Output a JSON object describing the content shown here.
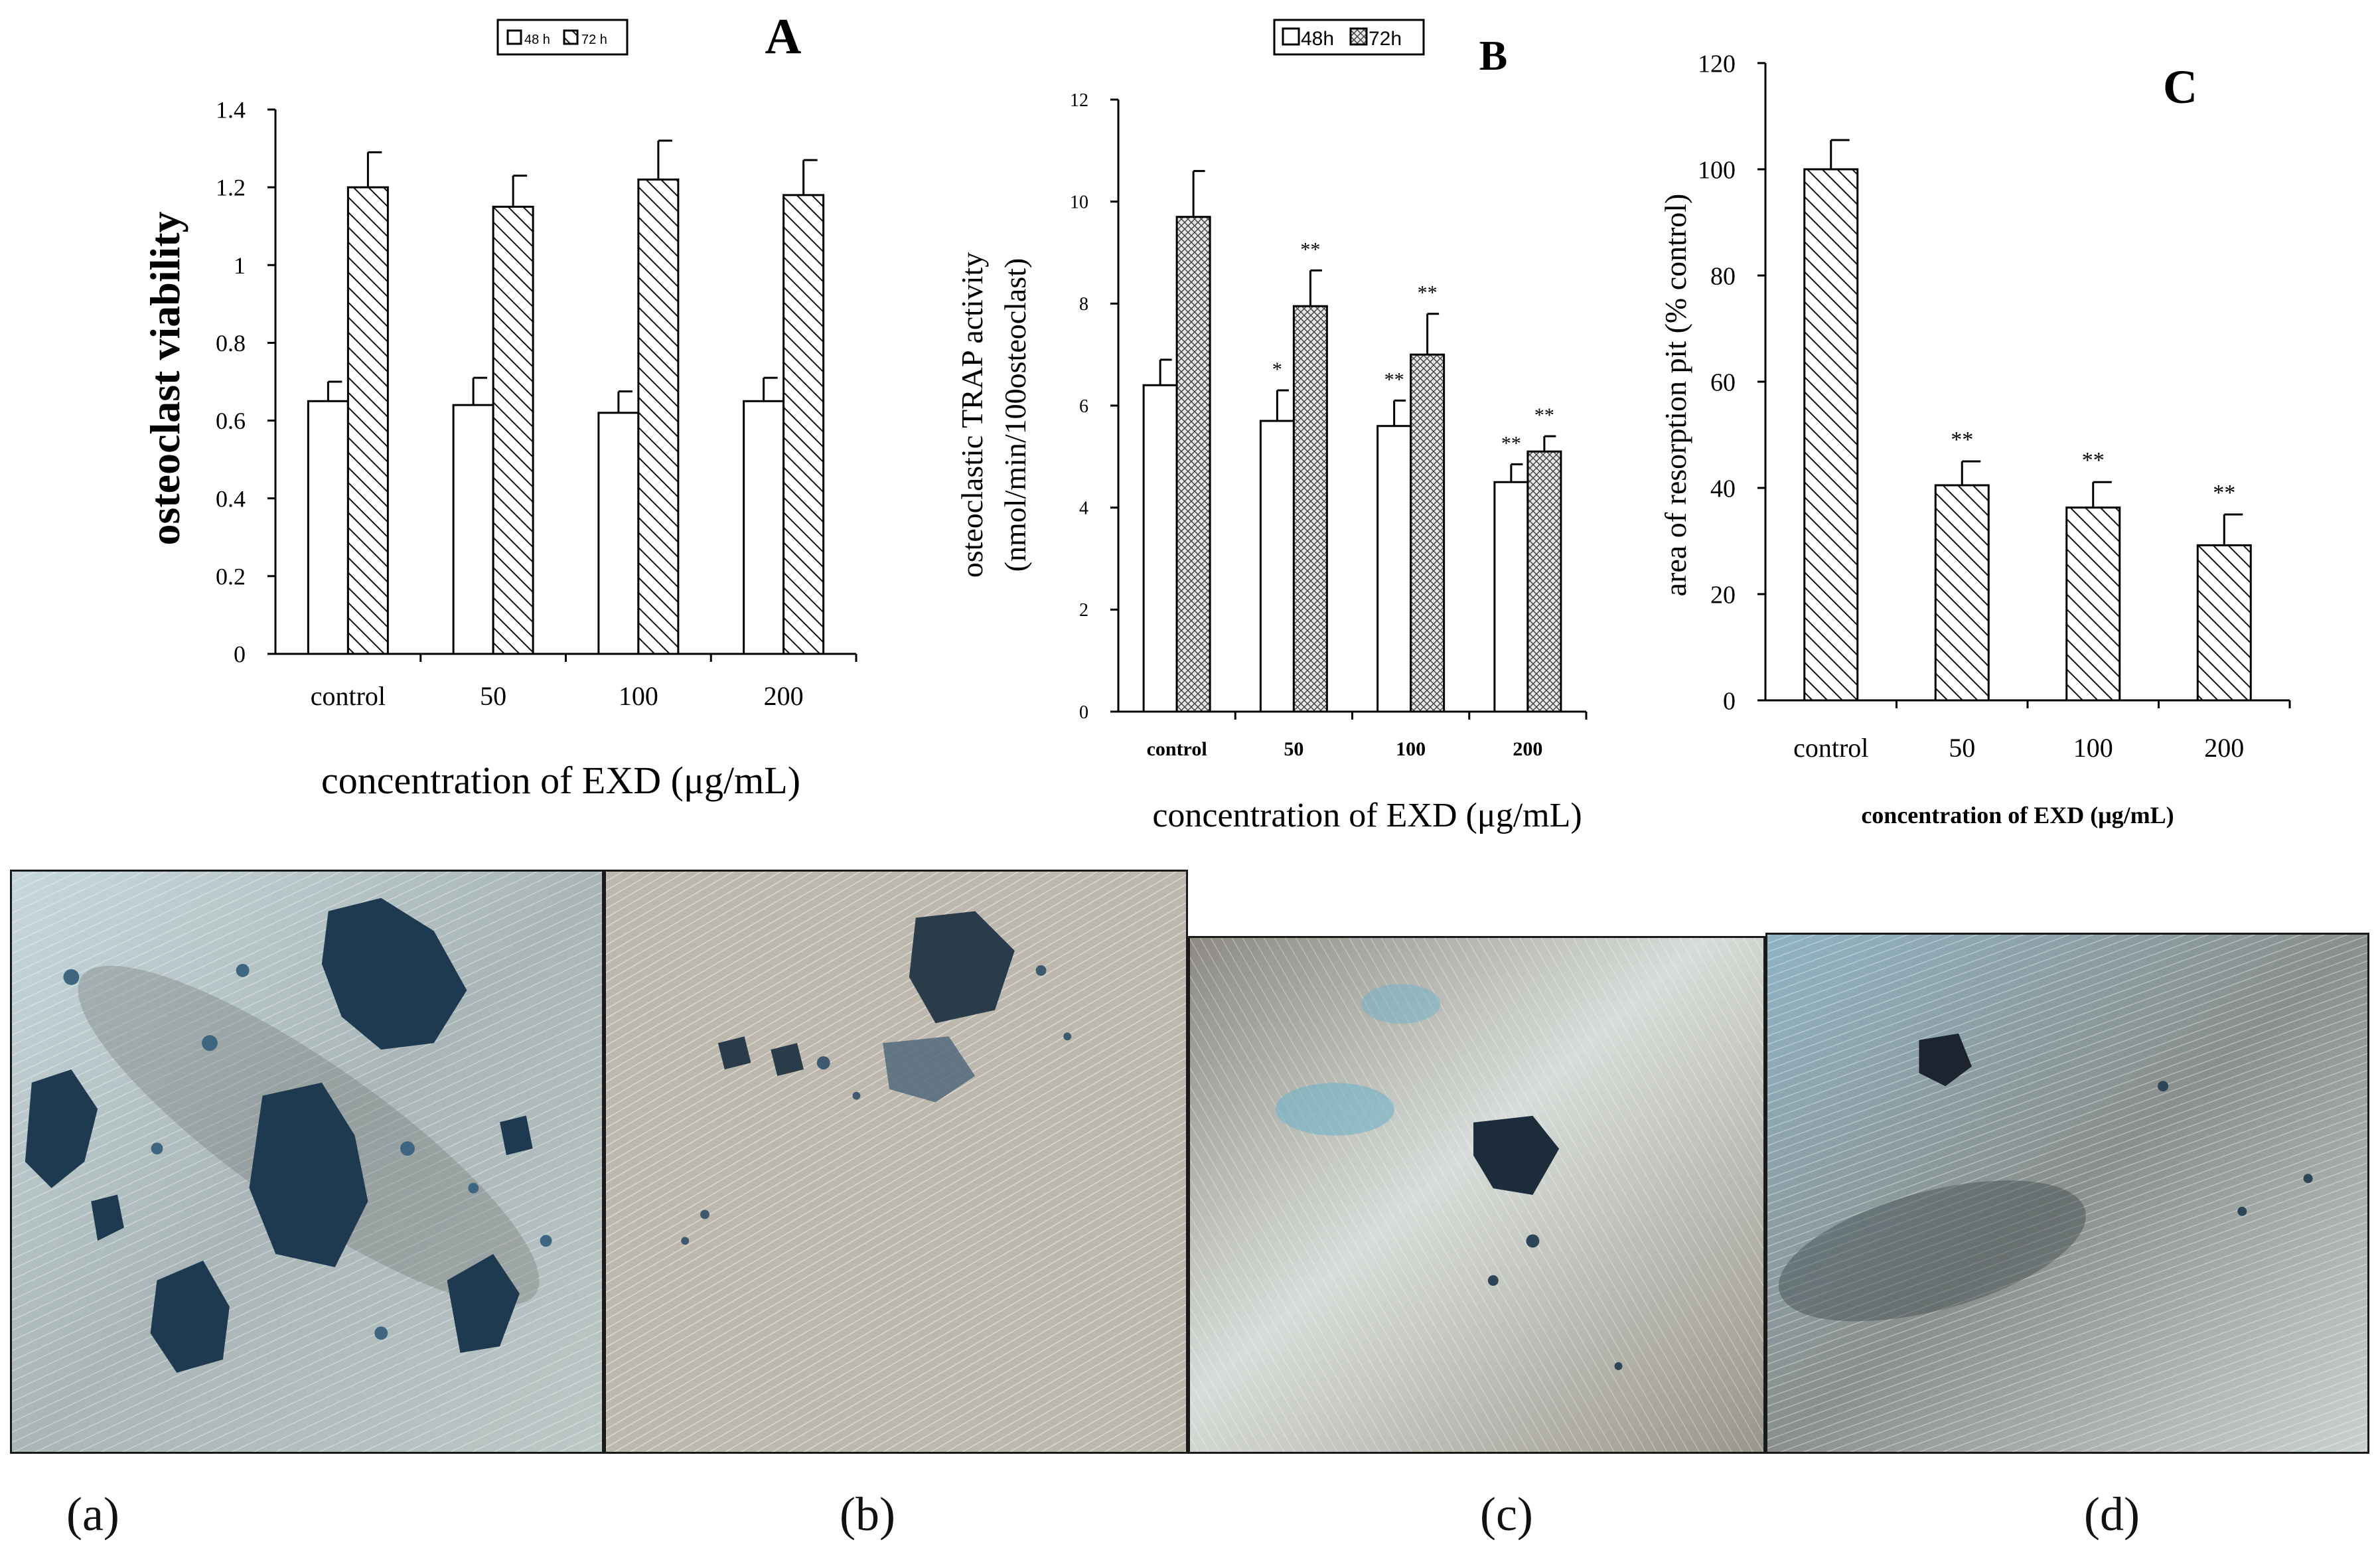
{
  "chart_data": [
    {
      "type": "bar",
      "title": "A",
      "categories": [
        "control",
        "50",
        "100",
        "200"
      ],
      "series": [
        {
          "name": "48 h",
          "values": [
            0.65,
            0.64,
            0.62,
            0.65
          ],
          "errors": [
            0.05,
            0.07,
            0.055,
            0.06
          ],
          "pattern": "white"
        },
        {
          "name": "72 h",
          "values": [
            1.2,
            1.15,
            1.22,
            1.18
          ],
          "errors": [
            0.09,
            0.08,
            0.1,
            0.09
          ],
          "pattern": "hatch"
        }
      ],
      "ylabel": "osteoclast viability",
      "xlabel": "concentration of EXD (μg/mL)",
      "ylim": [
        0,
        1.4
      ],
      "yticks": [
        "0",
        "0.2",
        "0.4",
        "0.6",
        "0.8",
        "1",
        "1.2",
        "1.4"
      ],
      "legend": "top"
    },
    {
      "type": "bar",
      "title": "B",
      "categories": [
        "control",
        "50",
        "100",
        "200"
      ],
      "series": [
        {
          "name": "48h",
          "values": [
            6.4,
            5.7,
            5.6,
            4.5
          ],
          "errors": [
            0.5,
            0.6,
            0.5,
            0.35
          ],
          "marks": [
            "",
            "*",
            "**",
            "**"
          ],
          "pattern": "white"
        },
        {
          "name": "72h",
          "values": [
            9.7,
            7.95,
            7.0,
            5.1
          ],
          "errors": [
            0.9,
            0.7,
            0.8,
            0.3
          ],
          "marks": [
            "",
            "**",
            "**",
            "**"
          ],
          "pattern": "dots"
        }
      ],
      "ylabel_lines": [
        "osteoclastic TRAP activity",
        "(nmol/min/100osteoclast)"
      ],
      "xlabel": "concentration of EXD (μg/mL)",
      "ylim": [
        0,
        12
      ],
      "yticks": [
        "0",
        "2",
        "4",
        "6",
        "8",
        "10",
        "12"
      ],
      "legend": "top"
    },
    {
      "type": "bar",
      "title": "C",
      "categories": [
        "control",
        "50",
        "100",
        "200"
      ],
      "series": [
        {
          "name": "",
          "values": [
            100,
            40.5,
            36.3,
            29.2
          ],
          "errors": [
            5.5,
            4.5,
            4.8,
            5.8
          ],
          "marks": [
            "",
            "**",
            "**",
            "**"
          ],
          "pattern": "hatch"
        }
      ],
      "ylabel": "area of resorption pit (% control)",
      "xlabel": "concentration of EXD (μg/mL)",
      "ylim": [
        0,
        120
      ],
      "yticks": [
        "0",
        "20",
        "40",
        "60",
        "80",
        "100",
        "120"
      ],
      "legend": "none"
    }
  ],
  "legendA": {
    "s1": "48 h",
    "s2": "72 h"
  },
  "legendB": {
    "s1": "48h",
    "s2": "72h"
  },
  "photos": {
    "labels": [
      "(a)",
      "(b)",
      "(c)",
      "(d)"
    ],
    "colors": {
      "bone": "#c9c6be",
      "stain": "#1f3a52",
      "tint": "#6aa8c4"
    }
  }
}
